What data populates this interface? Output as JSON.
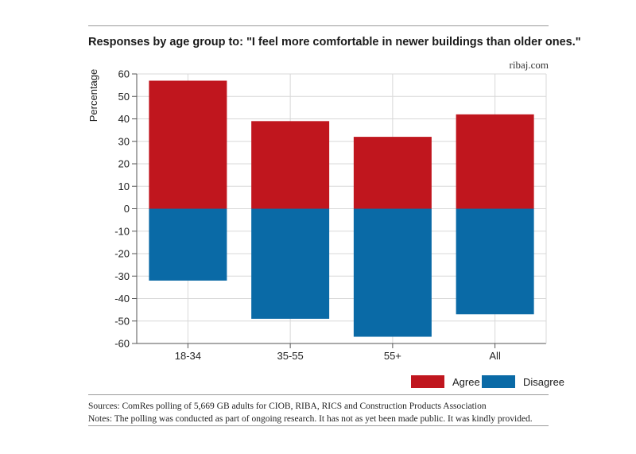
{
  "header": {
    "title": "Responses by age group to: \"I feel more comfortable in newer buildings than older ones.\"",
    "source_tag": "ribaj.com"
  },
  "colors": {
    "agree": "#c0161e",
    "disagree": "#0a6aa6",
    "grid": "#d8d8d8",
    "axis": "#555555"
  },
  "chart_data": {
    "type": "bar",
    "stacked": true,
    "categories": [
      "18-34",
      "35-55",
      "55+",
      "All"
    ],
    "series": [
      {
        "name": "Agree",
        "values": [
          57,
          39,
          32,
          42
        ]
      },
      {
        "name": "Disagree",
        "values": [
          -32,
          -49,
          -57,
          -47
        ]
      }
    ],
    "ylabel": "Percentage",
    "xlabel": "",
    "ylim": [
      -60,
      60
    ],
    "yticks": [
      60,
      50,
      40,
      30,
      20,
      10,
      0,
      -10,
      -20,
      -30,
      -40,
      -50,
      -60
    ],
    "grid": true,
    "legend_position": "bottom-right"
  },
  "legend": {
    "agree_label": "Agree",
    "disagree_label": "Disagree"
  },
  "footer": {
    "sources": "Sources: ComRes polling of 5,669 GB adults for CIOB, RIBA, RICS and Construction Products Association",
    "notes": "Notes: The polling was conducted as part of ongoing research. It has not as yet been made public. It was kindly provided."
  }
}
